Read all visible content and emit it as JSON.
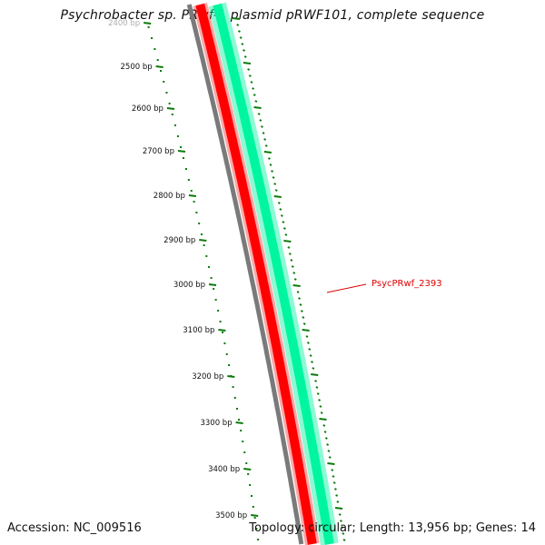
{
  "title": "Psychrobacter sp. PRwf-1 plasmid pRWF101, complete sequence",
  "footer": {
    "accession": "Accession: NC_009516",
    "summary": "Topology: circular; Length: 13,956 bp; Genes: 14"
  },
  "colors": {
    "backbone": "#7a7a7a",
    "forward_cds": "#ff0000",
    "reverse_cds": "#00f5a0",
    "ticks": "#0a7a0a",
    "gene_label": "#dd0000"
  },
  "ruler": {
    "unit": "bp",
    "labels": [
      "2400 bp",
      "2500 bp",
      "2600 bp",
      "2700 bp",
      "2800 bp",
      "2900 bp",
      "3000 bp",
      "3100 bp",
      "3200 bp",
      "3300 bp",
      "3400 bp",
      "3500 bp"
    ]
  },
  "gene_label": "PsycPRwf_2393"
}
